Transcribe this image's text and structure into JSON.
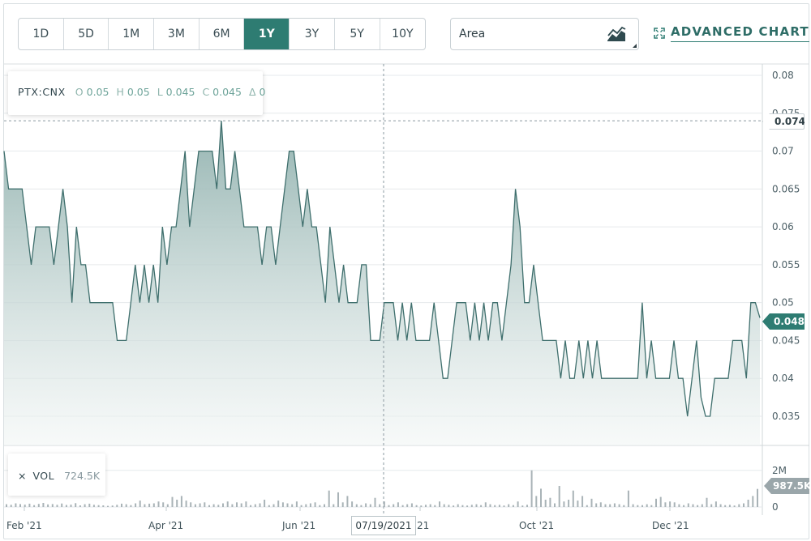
{
  "toolbar": {
    "ranges": [
      "1D",
      "5D",
      "1M",
      "3M",
      "6M",
      "1Y",
      "3Y",
      "5Y",
      "10Y"
    ],
    "active_range": "1Y",
    "chart_type": "Area",
    "chart_type_icon": "area-chart-icon",
    "advanced_label": "ADVANCED CHART",
    "advanced_icon": "expand-icon"
  },
  "legend": {
    "symbol": "PTX:CNX",
    "o_label": "O",
    "o_value": "0.05",
    "h_label": "H",
    "h_value": "0.05",
    "l_label": "L",
    "l_value": "0.045",
    "c_label": "C",
    "c_value": "0.045",
    "d_label": "Δ",
    "d_value": "0"
  },
  "volume": {
    "close_icon": "×",
    "label": "VOL",
    "value": "724.5K"
  },
  "tags": {
    "crosshair_price": "0.074",
    "last_price": "0.048",
    "last_volume": "987.5K",
    "crosshair_date": "07/19/2021"
  },
  "colors": {
    "accent": "#2e7c72",
    "line": "#3f6f6d",
    "area_top": "#8fb0ad",
    "area_bottom": "#f2f6f5",
    "volume_bar": "#a9b3b7"
  },
  "chart_data": {
    "type": "area",
    "price_axis": {
      "min": 0.035,
      "max": 0.08,
      "ticks": [
        "0.08",
        "0.075",
        "0.07",
        "0.065",
        "0.06",
        "0.055",
        "0.05",
        "0.045",
        "0.04",
        "0.035"
      ]
    },
    "volume_axis": {
      "ticks": [
        "2M",
        "0"
      ],
      "max": 2300000
    },
    "x_labels": [
      "Feb '21",
      "Apr '21",
      "Jun '21",
      "Aug '21",
      "Oct '21",
      "Dec '21"
    ],
    "crosshair": {
      "date": "07/19/2021",
      "price": 0.074
    },
    "series": [
      {
        "name": "PTX:CNX",
        "values": [
          0.07,
          0.065,
          0.065,
          0.065,
          0.065,
          0.06,
          0.055,
          0.06,
          0.06,
          0.06,
          0.06,
          0.055,
          0.06,
          0.065,
          0.06,
          0.05,
          0.06,
          0.055,
          0.055,
          0.05,
          0.05,
          0.05,
          0.05,
          0.05,
          0.05,
          0.045,
          0.045,
          0.045,
          0.05,
          0.055,
          0.05,
          0.055,
          0.05,
          0.055,
          0.05,
          0.06,
          0.055,
          0.06,
          0.06,
          0.065,
          0.07,
          0.06,
          0.065,
          0.07,
          0.07,
          0.07,
          0.07,
          0.065,
          0.074,
          0.065,
          0.065,
          0.07,
          0.065,
          0.06,
          0.06,
          0.06,
          0.06,
          0.055,
          0.06,
          0.06,
          0.055,
          0.06,
          0.065,
          0.07,
          0.07,
          0.065,
          0.06,
          0.065,
          0.06,
          0.06,
          0.055,
          0.05,
          0.06,
          0.055,
          0.05,
          0.055,
          0.05,
          0.05,
          0.05,
          0.055,
          0.055,
          0.045,
          0.045,
          0.045,
          0.05,
          0.05,
          0.05,
          0.045,
          0.05,
          0.045,
          0.05,
          0.045,
          0.045,
          0.045,
          0.045,
          0.05,
          0.045,
          0.04,
          0.04,
          0.045,
          0.05,
          0.05,
          0.05,
          0.045,
          0.05,
          0.045,
          0.05,
          0.045,
          0.05,
          0.05,
          0.045,
          0.05,
          0.055,
          0.065,
          0.06,
          0.05,
          0.05,
          0.055,
          0.05,
          0.045,
          0.045,
          0.045,
          0.045,
          0.04,
          0.045,
          0.04,
          0.04,
          0.045,
          0.04,
          0.045,
          0.04,
          0.045,
          0.04,
          0.04,
          0.04,
          0.04,
          0.04,
          0.04,
          0.04,
          0.04,
          0.04,
          0.05,
          0.04,
          0.045,
          0.04,
          0.04,
          0.04,
          0.04,
          0.045,
          0.04,
          0.04,
          0.035,
          0.04,
          0.045,
          0.0375,
          0.035,
          0.035,
          0.04,
          0.04,
          0.04,
          0.04,
          0.045,
          0.045,
          0.045,
          0.04,
          0.05,
          0.05,
          0.048
        ]
      },
      {
        "name": "VOL",
        "values": [
          150000,
          120000,
          200000,
          160000,
          130000,
          180000,
          100000,
          170000,
          220000,
          140000,
          160000,
          120000,
          190000,
          110000,
          130000,
          210000,
          90000,
          150000,
          180000,
          120000,
          100000,
          90000,
          60000,
          80000,
          120000,
          180000,
          150000,
          100000,
          200000,
          350000,
          150000,
          180000,
          200000,
          300000,
          250000,
          150000,
          550000,
          400000,
          600000,
          350000,
          250000,
          150000,
          200000,
          250000,
          100000,
          150000,
          120000,
          200000,
          300000,
          150000,
          250000,
          200000,
          300000,
          100000,
          150000,
          200000,
          400000,
          100000,
          150000,
          350000,
          250000,
          200000,
          150000,
          300000,
          100000,
          150000,
          200000,
          250000,
          100000,
          150000,
          900000,
          150000,
          800000,
          250000,
          600000,
          300000,
          150000,
          100000,
          200000,
          150000,
          500000,
          150000,
          300000,
          100000,
          150000,
          250000,
          100000,
          150000,
          200000,
          100000,
          80000,
          120000,
          150000,
          100000,
          300000,
          150000,
          120000,
          80000,
          150000,
          100000,
          80000,
          120000,
          150000,
          100000,
          250000,
          150000,
          100000,
          120000,
          80000,
          150000,
          100000,
          300000,
          80000,
          120000,
          2000000,
          600000,
          1000000,
          400000,
          500000,
          200000,
          1150000,
          300000,
          400000,
          900000,
          350000,
          600000,
          100000,
          450000,
          200000,
          250000,
          150000,
          150000,
          200000,
          150000,
          100000,
          900000,
          150000,
          100000,
          100000,
          150000,
          100000,
          450000,
          550000,
          250000,
          300000,
          250000,
          150000,
          100000,
          200000,
          150000,
          100000,
          150000,
          500000,
          150000,
          300000,
          150000,
          100000,
          120000,
          80000,
          150000,
          200000,
          400000,
          600000,
          987500
        ]
      }
    ]
  }
}
